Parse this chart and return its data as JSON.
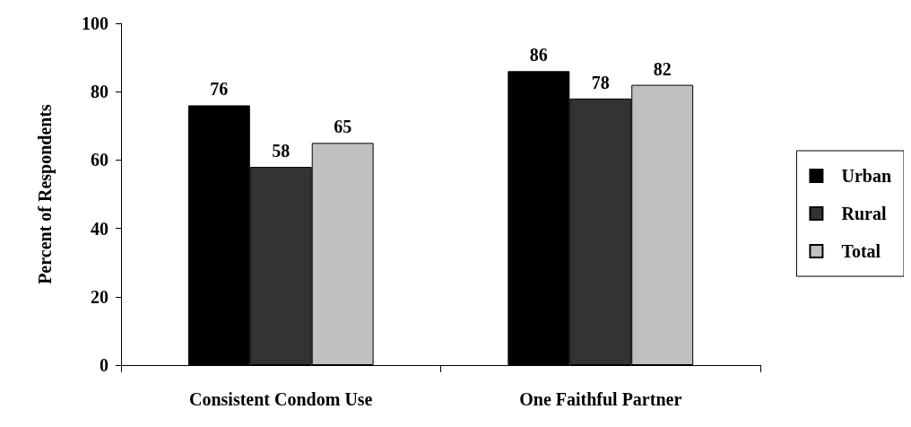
{
  "chart_data": {
    "type": "bar",
    "ylabel": "Percent of Respondents",
    "categories": [
      "Consistent Condom Use",
      "One Faithful Partner"
    ],
    "series": [
      {
        "name": "Urban",
        "color": "#000000",
        "values": [
          76,
          86
        ]
      },
      {
        "name": "Rural",
        "color": "#333333",
        "values": [
          58,
          78
        ]
      },
      {
        "name": "Total",
        "color": "#c0c0c0",
        "values": [
          65,
          82
        ]
      }
    ],
    "ylim": [
      0,
      100
    ],
    "yticks": [
      0,
      20,
      40,
      60,
      80,
      100
    ],
    "grid": false,
    "legend": "right",
    "data_labels": true
  }
}
